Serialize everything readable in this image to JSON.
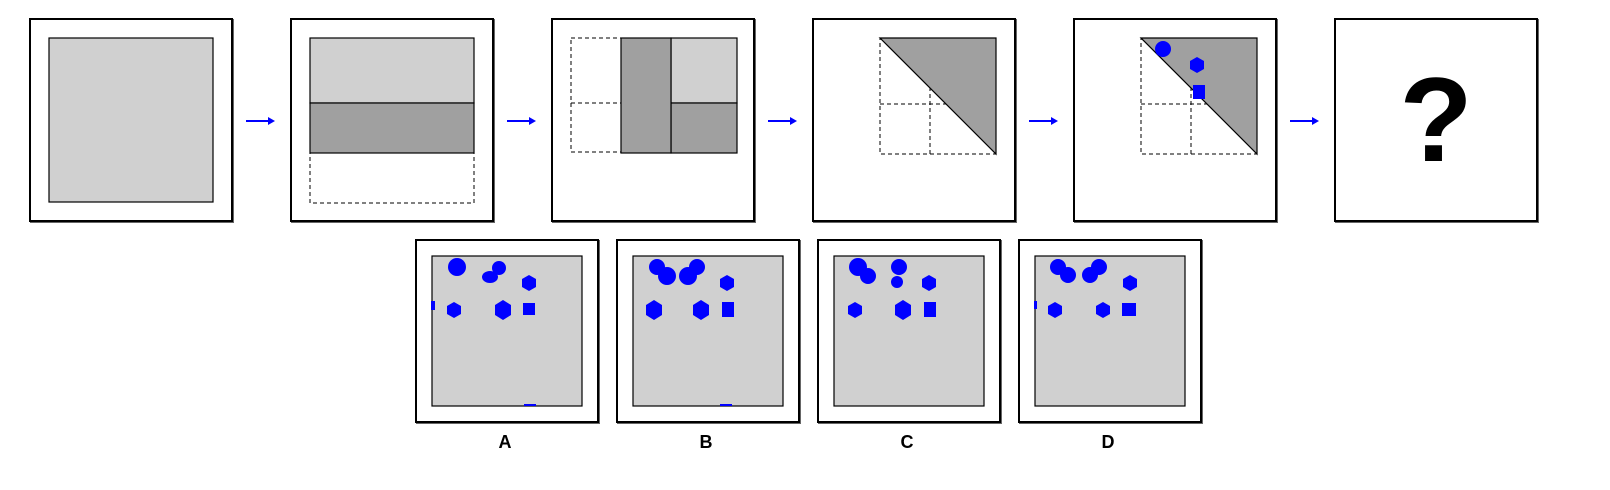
{
  "question_mark": "?",
  "options": [
    {
      "label": "A"
    },
    {
      "label": "B"
    },
    {
      "label": "C"
    },
    {
      "label": "D"
    }
  ],
  "colors": {
    "light_fill": "#d0d0d0",
    "dark_fill": "#a0a0a0",
    "shape_blue": "#0000ff",
    "arrow_blue": "#0000ff"
  }
}
